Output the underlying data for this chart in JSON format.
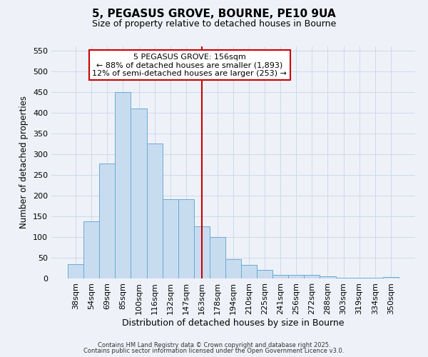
{
  "title": "5, PEGASUS GROVE, BOURNE, PE10 9UA",
  "subtitle": "Size of property relative to detached houses in Bourne",
  "xlabel": "Distribution of detached houses by size in Bourne",
  "ylabel": "Number of detached properties",
  "bar_labels": [
    "38sqm",
    "54sqm",
    "69sqm",
    "85sqm",
    "100sqm",
    "116sqm",
    "132sqm",
    "147sqm",
    "163sqm",
    "178sqm",
    "194sqm",
    "210sqm",
    "225sqm",
    "241sqm",
    "256sqm",
    "272sqm",
    "288sqm",
    "303sqm",
    "319sqm",
    "334sqm",
    "350sqm"
  ],
  "bar_values": [
    35,
    137,
    278,
    450,
    410,
    325,
    192,
    192,
    125,
    100,
    47,
    32,
    20,
    8,
    8,
    8,
    5,
    2,
    2,
    1,
    3
  ],
  "bar_color": "#c8dcf0",
  "bar_edge_color": "#6aaad4",
  "vline_x_idx": 8,
  "vline_color": "#cc0000",
  "annotation_title": "5 PEGASUS GROVE: 156sqm",
  "annotation_line1": "← 88% of detached houses are smaller (1,893)",
  "annotation_line2": "12% of semi-detached houses are larger (253) →",
  "annotation_box_color": "#ffffff",
  "annotation_box_edge": "#cc0000",
  "ylim": [
    0,
    560
  ],
  "yticks": [
    0,
    50,
    100,
    150,
    200,
    250,
    300,
    350,
    400,
    450,
    500,
    550
  ],
  "grid_color": "#d0d8e8",
  "bg_color": "#eef2f8",
  "footer1": "Contains HM Land Registry data © Crown copyright and database right 2025.",
  "footer2": "Contains public sector information licensed under the Open Government Licence v3.0."
}
